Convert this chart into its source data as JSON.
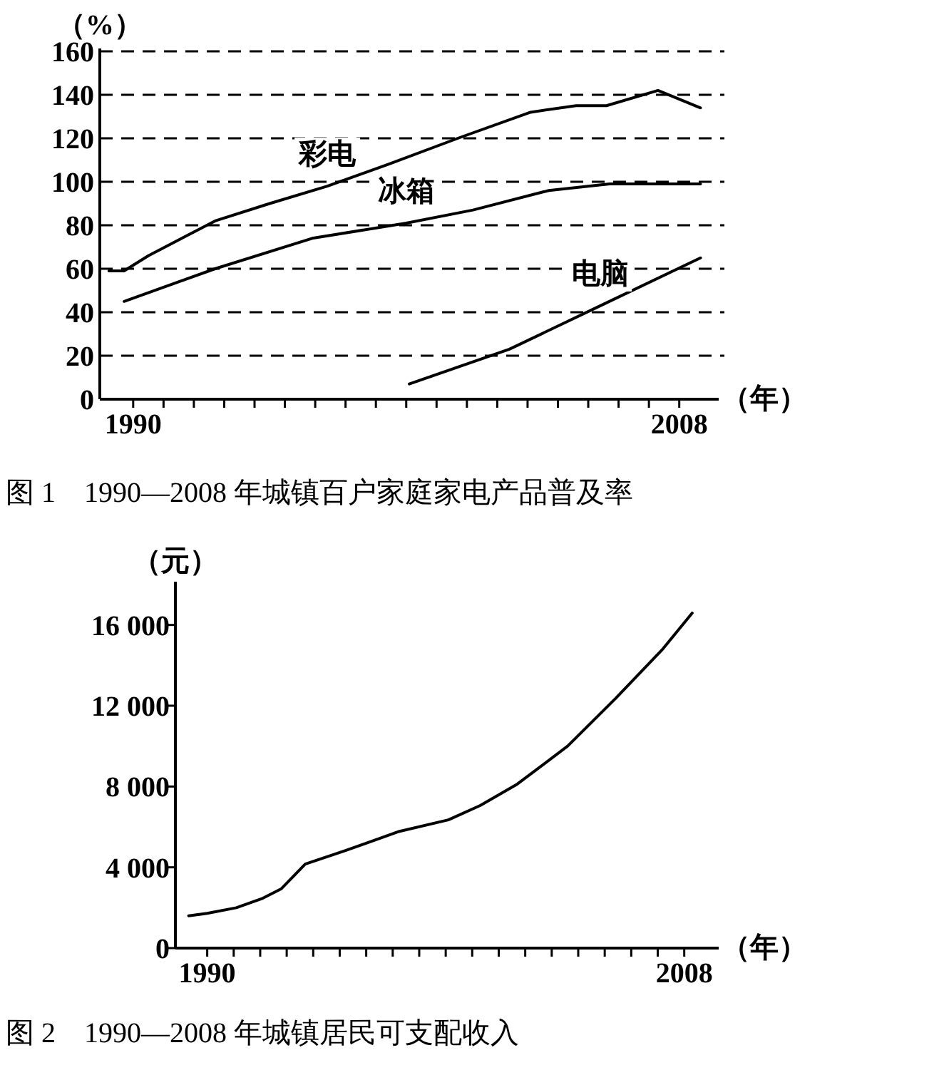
{
  "chart_data": [
    {
      "type": "line",
      "title": "图 1　1990—2008 年城镇百户家庭家电产品普及率",
      "ylabel": "（%）",
      "xlabel": "（年）",
      "xlim": [
        1988.9,
        2009.3
      ],
      "ylim": [
        0,
        160
      ],
      "xticks": [
        {
          "value": 1990,
          "label": "1990"
        },
        {
          "value": 1991,
          "label": null
        },
        {
          "value": 1992,
          "label": null
        },
        {
          "value": 1993,
          "label": null
        },
        {
          "value": 1994,
          "label": null
        },
        {
          "value": 1995,
          "label": null
        },
        {
          "value": 1996,
          "label": null
        },
        {
          "value": 1997,
          "label": null
        },
        {
          "value": 1998,
          "label": null
        },
        {
          "value": 1999,
          "label": null
        },
        {
          "value": 2000,
          "label": null
        },
        {
          "value": 2001,
          "label": null
        },
        {
          "value": 2002,
          "label": null
        },
        {
          "value": 2003,
          "label": null
        },
        {
          "value": 2004,
          "label": null
        },
        {
          "value": 2005,
          "label": null
        },
        {
          "value": 2006,
          "label": null
        },
        {
          "value": 2007,
          "label": null
        },
        {
          "value": 2008,
          "label": "2008"
        }
      ],
      "yticks": [
        0,
        20,
        40,
        60,
        80,
        100,
        120,
        140,
        160
      ],
      "grid": "y",
      "series": [
        {
          "color": "#000000",
          "x": [
            1989.2,
            1989.7,
            1990.5,
            1992.7,
            1994.5,
            1996.4,
            1998.4,
            2000.7,
            2003.1,
            2004.6,
            2005.6,
            2007.3,
            2008.7
          ],
          "values": [
            59,
            59,
            66,
            82,
            90,
            98,
            108,
            120,
            132,
            135,
            135,
            142,
            134
          ]
        },
        {
          "color": "#000000",
          "x": [
            1989.7,
            1992.7,
            1995.9,
            1999.0,
            2001.2,
            2003.7,
            2005.7,
            2008.7
          ],
          "values": [
            45,
            60,
            74,
            81,
            87,
            96,
            99,
            99
          ]
        },
        {
          "color": "#000000",
          "x": [
            1999.1,
            2002.4,
            2005.4,
            2008.7
          ],
          "values": [
            7,
            23,
            43,
            65
          ]
        }
      ],
      "annotations": [
        {
          "text": "彩电",
          "x": 1996.4,
          "y": 98
        },
        {
          "text": "冰箱",
          "x": 1999.0,
          "y": 81
        },
        {
          "text": "电脑",
          "x": 2005.4,
          "y": 43
        }
      ]
    },
    {
      "type": "line",
      "title": "图 2　1990—2008 年城镇居民可支配收入",
      "ylabel": "（元）",
      "xlabel": "（年）",
      "xlim": [
        1988.8,
        2009.3
      ],
      "ylim": [
        0,
        18000
      ],
      "xticks": [
        {
          "value": 1990,
          "label": "1990"
        },
        {
          "value": 1991,
          "label": null
        },
        {
          "value": 1992,
          "label": null
        },
        {
          "value": 1993,
          "label": null
        },
        {
          "value": 1994,
          "label": null
        },
        {
          "value": 1995,
          "label": null
        },
        {
          "value": 1996,
          "label": null
        },
        {
          "value": 1997,
          "label": null
        },
        {
          "value": 1998,
          "label": null
        },
        {
          "value": 1999,
          "label": null
        },
        {
          "value": 2000,
          "label": null
        },
        {
          "value": 2001,
          "label": null
        },
        {
          "value": 2002,
          "label": null
        },
        {
          "value": 2003,
          "label": null
        },
        {
          "value": 2004,
          "label": null
        },
        {
          "value": 2005,
          "label": null
        },
        {
          "value": 2006,
          "label": null
        },
        {
          "value": 2007,
          "label": null
        },
        {
          "value": 2008,
          "label": "2008"
        }
      ],
      "yticks": [
        0,
        {
          "value": 4000,
          "label": "4 000"
        },
        {
          "value": 8000,
          "label": "8 000"
        },
        {
          "value": 12000,
          "label": "12 000"
        },
        {
          "value": 16000,
          "label": "16 000"
        }
      ],
      "series": [
        {
          "color": "#000000",
          "x": [
            1989.3,
            1990.0,
            1991.1,
            1992.1,
            1992.8,
            1993.7,
            1995.2,
            1997.2,
            1999.1,
            2000.3,
            2001.7,
            2003.6,
            2005.4,
            2007.2,
            2008.3
          ],
          "values": [
            1600,
            1720,
            2000,
            2470,
            2940,
            4160,
            4820,
            5760,
            6350,
            7060,
            8120,
            10000,
            12350,
            14820,
            16590
          ]
        }
      ]
    }
  ]
}
